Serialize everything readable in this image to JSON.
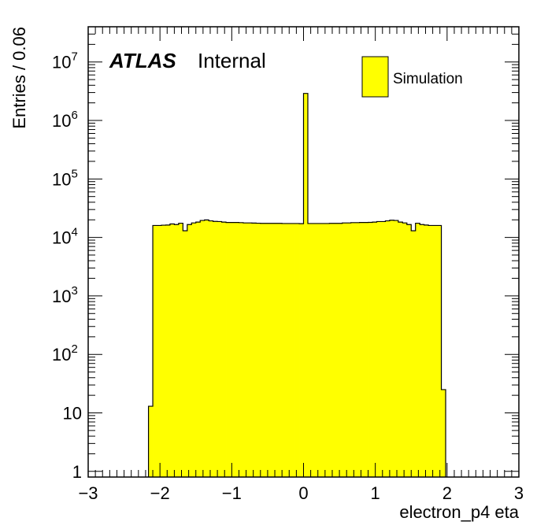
{
  "chart_data": {
    "type": "bar",
    "title": "",
    "xlabel": "electron_p4 eta",
    "ylabel": "Entries / 0.06",
    "xlim": [
      -3,
      3
    ],
    "ylim": [
      0.8,
      40000000
    ],
    "yscale": "log",
    "bin_width": 0.06,
    "fill_color": "#ffff00",
    "edge_color": "#000000",
    "x_tick_labels": [
      "−3",
      "−2",
      "−1",
      "0",
      "1",
      "2",
      "3"
    ],
    "x_ticks": [
      -3,
      -2,
      -1,
      0,
      1,
      2,
      3
    ],
    "y_ticks": [
      {
        "value": 1,
        "base": "1",
        "exp": ""
      },
      {
        "value": 10,
        "base": "10",
        "exp": ""
      },
      {
        "value": 100,
        "base": "10",
        "exp": "2"
      },
      {
        "value": 1000,
        "base": "10",
        "exp": "3"
      },
      {
        "value": 10000,
        "base": "10",
        "exp": "4"
      },
      {
        "value": 100000,
        "base": "10",
        "exp": "5"
      },
      {
        "value": 1000000,
        "base": "10",
        "exp": "6"
      },
      {
        "value": 10000000,
        "base": "10",
        "exp": "7"
      }
    ],
    "series": [
      {
        "name": "Simulation",
        "bin_edges_start": -2.16,
        "values": [
          13,
          16000,
          16000,
          16200,
          16300,
          17000,
          16600,
          17500,
          13000,
          16600,
          17700,
          18300,
          19500,
          19900,
          19200,
          18800,
          18700,
          18300,
          18000,
          18000,
          18000,
          17900,
          17700,
          17700,
          17600,
          17500,
          17400,
          17400,
          17400,
          17400,
          17400,
          17300,
          17300,
          17300,
          17300,
          17200,
          2900000,
          17300,
          17300,
          17300,
          17300,
          17300,
          17400,
          17400,
          17400,
          17700,
          17700,
          17900,
          17900,
          18000,
          18000,
          18100,
          18300,
          18700,
          18700,
          19200,
          19700,
          19500,
          18300,
          17700,
          16600,
          13000,
          17500,
          16600,
          16300,
          16000,
          16000,
          16000,
          25
        ]
      }
    ],
    "legend": {
      "entries": [
        "Simulation"
      ],
      "position": "top-right"
    }
  },
  "labels": {
    "atlas": "ATLAS",
    "internal": "Internal",
    "legend_label": "Simulation",
    "xlabel": "electron_p4 eta",
    "ylabel": "Entries / 0.06"
  }
}
